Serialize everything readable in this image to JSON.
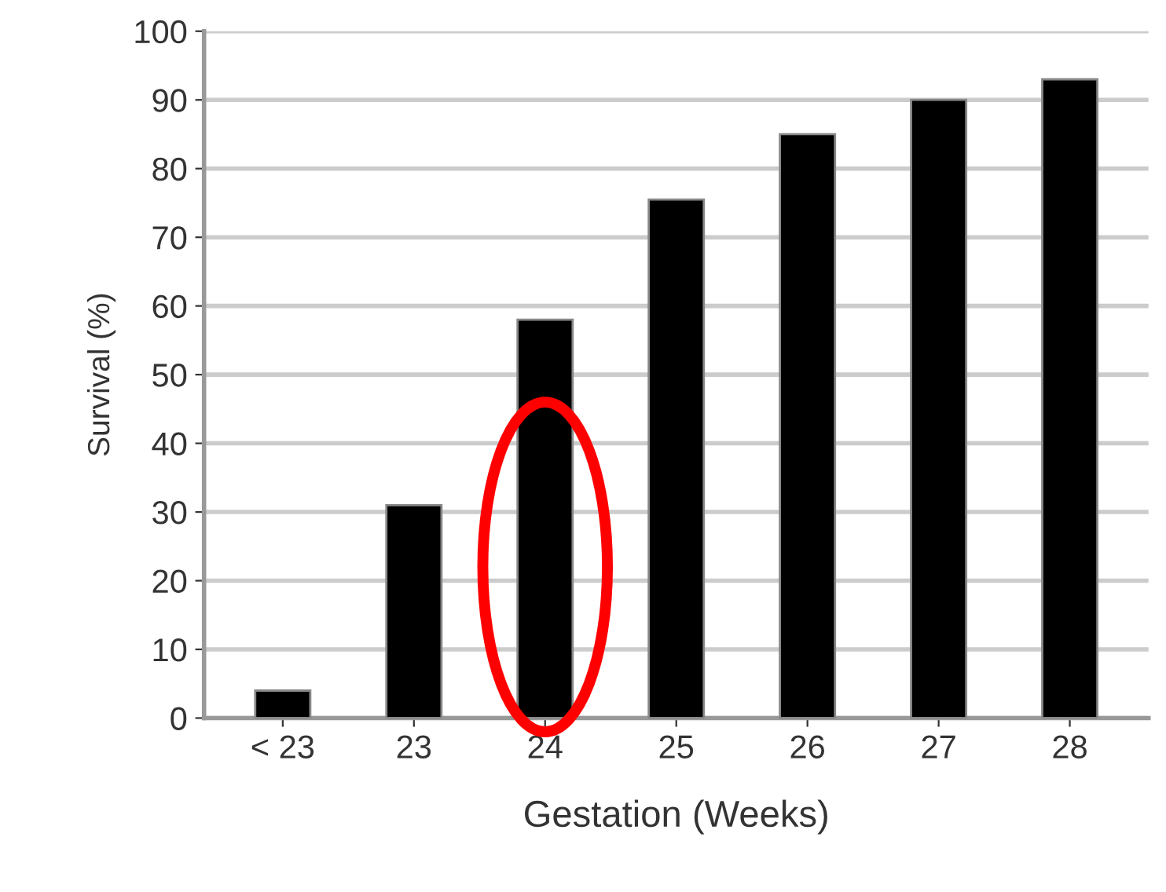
{
  "chart_data": {
    "type": "bar",
    "xlabel": "Gestation (Weeks)",
    "ylabel": "Survival (%)",
    "categories": [
      "< 23",
      "23",
      "24",
      "25",
      "26",
      "27",
      "28"
    ],
    "values": [
      4,
      31,
      58,
      75.5,
      85,
      90,
      93
    ],
    "color": "#000000",
    "ylim": [
      0,
      100
    ],
    "yticks": [
      0,
      10,
      20,
      30,
      40,
      50,
      60,
      70,
      80,
      90,
      100
    ],
    "grid": "y"
  }
}
